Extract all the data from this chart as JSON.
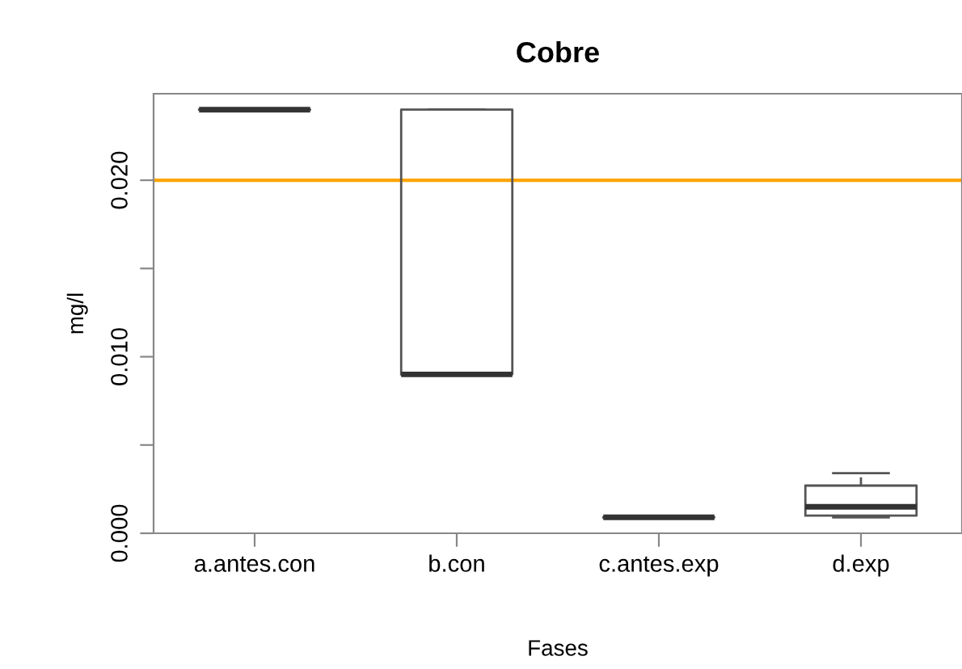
{
  "chart_data": {
    "type": "box",
    "title": "Cobre",
    "xlabel": "Fases",
    "ylabel": "mg/l",
    "categories": [
      "a.antes.con",
      "b.con",
      "c.antes.exp",
      "d.exp"
    ],
    "boxes": [
      {
        "low": 0.024,
        "q1": 0.024,
        "median": 0.024,
        "q3": 0.024,
        "high": 0.024
      },
      {
        "low": 0.009,
        "q1": 0.009,
        "median": 0.009,
        "q3": 0.024,
        "high": 0.024
      },
      {
        "low": 0.0009,
        "q1": 0.0009,
        "median": 0.0009,
        "q3": 0.0009,
        "high": 0.0009
      },
      {
        "low": 0.0009,
        "q1": 0.001,
        "median": 0.0015,
        "q3": 0.0027,
        "high": 0.0034
      }
    ],
    "ylim": [
      0.0,
      0.0249
    ],
    "yticks": [
      {
        "value": 0.0,
        "label": "0.000"
      },
      {
        "value": 0.005,
        "label": null
      },
      {
        "value": 0.01,
        "label": "0.010"
      },
      {
        "value": 0.015,
        "label": null
      },
      {
        "value": 0.02,
        "label": "0.020"
      }
    ],
    "ref_lines": [
      {
        "axis": "y",
        "value": 0.02,
        "color": "#ffa500"
      }
    ],
    "grid": false,
    "legend": false
  }
}
